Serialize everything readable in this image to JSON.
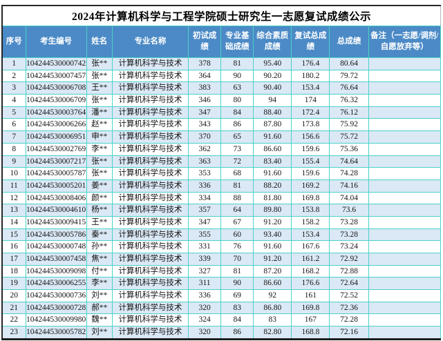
{
  "title": "2024年计算机科学与工程学院硕士研究生一志愿复试成绩公示",
  "table": {
    "headers": [
      "序号",
      "考生编号",
      "姓名",
      "专业名称",
      "初试成绩",
      "专业基础成绩",
      "综合素质成绩",
      "复试总成绩",
      "总成绩",
      "备注（一志愿/调剂/自愿放弃等）"
    ],
    "rows": [
      [
        "1",
        "104244530000742",
        "张**",
        "计算机科学与技术",
        "378",
        "81",
        "95.40",
        "176.4",
        "80.64",
        ""
      ],
      [
        "2",
        "104244530007457",
        "张**",
        "计算机科学与技术",
        "364",
        "90",
        "90.20",
        "180.2",
        "79.72",
        ""
      ],
      [
        "3",
        "104244530006708",
        "王**",
        "计算机科学与技术",
        "383",
        "63",
        "90.40",
        "153.4",
        "76.64",
        ""
      ],
      [
        "4",
        "104244530006709",
        "张**",
        "计算机科学与技术",
        "346",
        "80",
        "94",
        "174",
        "76.32",
        ""
      ],
      [
        "5",
        "104244530003764",
        "潘**",
        "计算机科学与技术",
        "347",
        "84",
        "88.40",
        "172.4",
        "76.12",
        ""
      ],
      [
        "6",
        "104244530006266",
        "赵**",
        "计算机科学与技术",
        "343",
        "86",
        "87.80",
        "173.8",
        "75.92",
        ""
      ],
      [
        "7",
        "104244530006951",
        "申**",
        "计算机科学与技术",
        "370",
        "65",
        "91.60",
        "156.6",
        "75.72",
        ""
      ],
      [
        "8",
        "104244530002769",
        "李**",
        "计算机科学与技术",
        "362",
        "73",
        "86.60",
        "159.6",
        "75.36",
        ""
      ],
      [
        "9",
        "104244530007217",
        "张**",
        "计算机科学与技术",
        "363",
        "72",
        "83.40",
        "155.4",
        "74.64",
        ""
      ],
      [
        "10",
        "104244530005787",
        "张**",
        "计算机科学与技术",
        "353",
        "68",
        "91.60",
        "159.6",
        "74.28",
        ""
      ],
      [
        "11",
        "104244530005201",
        "姜**",
        "计算机科学与技术",
        "336",
        "81",
        "88.20",
        "169.2",
        "74.16",
        ""
      ],
      [
        "12",
        "104244530008406",
        "颜**",
        "计算机科学与技术",
        "334",
        "88",
        "81.80",
        "169.8",
        "74.04",
        ""
      ],
      [
        "13",
        "104244530004610",
        "杨**",
        "计算机科学与技术",
        "357",
        "64",
        "89.80",
        "153.8",
        "73.6",
        ""
      ],
      [
        "14",
        "104244530009415",
        "王**",
        "计算机科学与技术",
        "347",
        "67",
        "91.20",
        "158.2",
        "73.28",
        ""
      ],
      [
        "15",
        "104244530005786",
        "秦**",
        "计算机科学与技术",
        "355",
        "60",
        "93.40",
        "153.4",
        "73.28",
        ""
      ],
      [
        "16",
        "104244530000748",
        "孙**",
        "计算机科学与技术",
        "331",
        "76",
        "91.60",
        "167.6",
        "73.24",
        ""
      ],
      [
        "17",
        "104244530007458",
        "焦**",
        "计算机科学与技术",
        "339",
        "70",
        "91.20",
        "161.2",
        "72.92",
        ""
      ],
      [
        "18",
        "104244530009098",
        "付**",
        "计算机科学与技术",
        "327",
        "81",
        "87.20",
        "168.2",
        "72.88",
        ""
      ],
      [
        "19",
        "104244530006255",
        "李**",
        "计算机科学与技术",
        "311",
        "90",
        "86.60",
        "176.6",
        "72.64",
        ""
      ],
      [
        "20",
        "104244530000736",
        "刘**",
        "计算机科学与技术",
        "336",
        "69",
        "92",
        "161",
        "72.52",
        ""
      ],
      [
        "21",
        "104244530000728",
        "郝**",
        "计算机科学与技术",
        "320",
        "83",
        "86.80",
        "169.8",
        "72.36",
        ""
      ],
      [
        "22",
        "104244530009980",
        "魏**",
        "计算机科学与技术",
        "324",
        "84",
        "83",
        "167",
        "72.28",
        ""
      ],
      [
        "23",
        "104244530005782",
        "刘**",
        "计算机科学与技术",
        "320",
        "86",
        "82.80",
        "168.8",
        "72.16",
        ""
      ]
    ]
  },
  "colors": {
    "header_bg": "#4b8ac6",
    "header_text": "#ffffff",
    "row_alt_bg": "#dbe8f5",
    "grid_border": "#4ad1c8",
    "outer_border": "#262626"
  }
}
